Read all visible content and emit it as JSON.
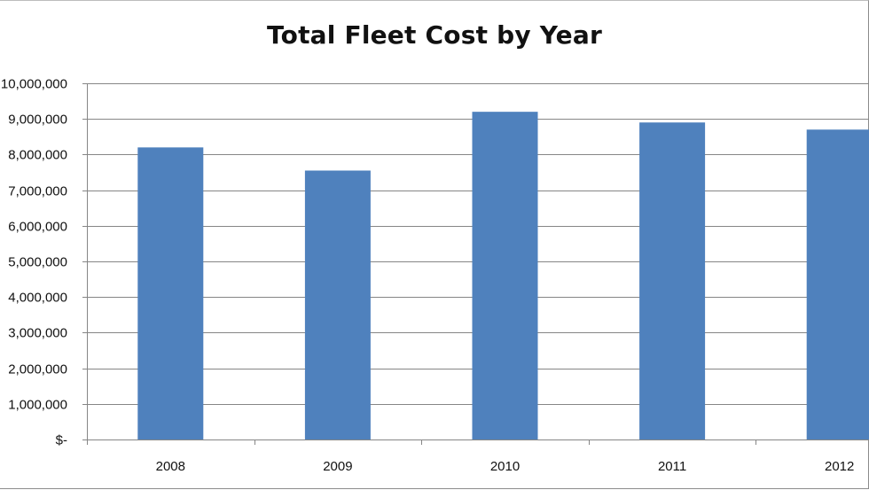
{
  "chart_data": {
    "type": "bar",
    "title": "Total Fleet Cost by Year",
    "xlabel": "",
    "ylabel": "",
    "categories": [
      "2008",
      "2009",
      "2010",
      "2011",
      "2012"
    ],
    "values": [
      8200000,
      7550000,
      9200000,
      8900000,
      8700000
    ],
    "ylim": [
      0,
      10000000
    ],
    "y_ticks": [
      0,
      1000000,
      2000000,
      3000000,
      4000000,
      5000000,
      6000000,
      7000000,
      8000000,
      9000000,
      10000000
    ],
    "y_tick_labels": [
      "$-",
      "1,000,000",
      "2,000,000",
      "3,000,000",
      "4,000,000",
      "5,000,000",
      "6,000,000",
      "7,000,000",
      "8,000,000",
      "9,000,000",
      "10,000,000"
    ],
    "grid": true,
    "legend": "none",
    "bar_color": "#4f81bd",
    "gridline_color": "#868686"
  }
}
